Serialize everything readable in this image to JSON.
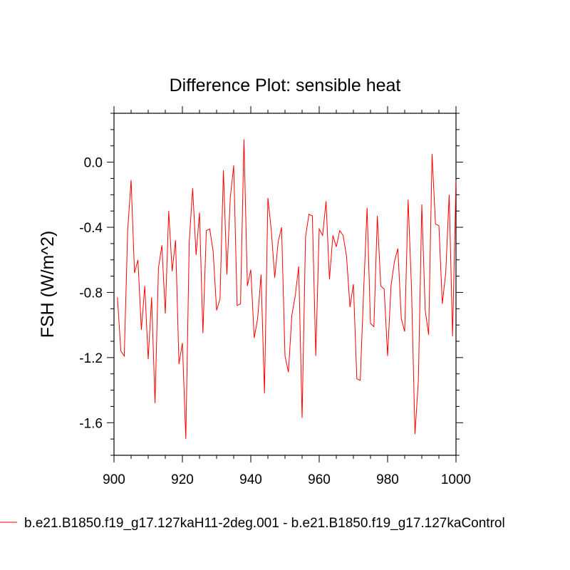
{
  "chart_data": {
    "type": "line",
    "title": "Difference Plot: sensible heat",
    "ylabel": "FSH  (W/m^2)",
    "xlabel": "",
    "xlim": [
      900,
      1000
    ],
    "ylim": [
      -1.8,
      0.3
    ],
    "x_ticks": [
      900,
      920,
      940,
      960,
      980,
      1000
    ],
    "x_tick_labels": [
      "900",
      "920",
      "940",
      "960",
      "980",
      "1000"
    ],
    "y_ticks": [
      0.0,
      -0.4,
      -0.8,
      -1.2,
      -1.6
    ],
    "y_tick_labels": [
      "0.0",
      "-0.4",
      "-0.8",
      "-1.2",
      "-1.6"
    ],
    "legend": {
      "position": "bottom",
      "label": "b.e21.B1850.f19_g17.127kaH11-2deg.001 - b.e21.B1850.f19_g17.127kaControl"
    },
    "series": [
      {
        "name": "b.e21.B1850.f19_g17.127kaH11-2deg.001 - b.e21.B1850.f19_g17.127kaControl",
        "color": "#ff0000",
        "x_start": 901,
        "x_step": 1,
        "values": [
          -0.83,
          -1.16,
          -1.19,
          -0.42,
          -0.11,
          -0.68,
          -0.6,
          -1.03,
          -0.76,
          -1.21,
          -0.83,
          -1.48,
          -0.65,
          -0.51,
          -0.93,
          -0.3,
          -0.67,
          -0.48,
          -1.24,
          -1.11,
          -1.7,
          -0.49,
          -0.16,
          -0.57,
          -0.31,
          -1.05,
          -0.42,
          -0.41,
          -0.55,
          -0.91,
          -0.84,
          -0.05,
          -0.69,
          -0.22,
          -0.02,
          -0.88,
          -0.87,
          0.14,
          -0.76,
          -0.66,
          -1.08,
          -0.96,
          -0.69,
          -1.42,
          -0.22,
          -0.42,
          -0.71,
          -0.49,
          -0.4,
          -1.19,
          -1.29,
          -0.94,
          -0.82,
          -0.64,
          -1.57,
          -0.46,
          -0.32,
          -0.33,
          -1.19,
          -0.41,
          -0.45,
          -0.24,
          -0.72,
          -0.45,
          -0.52,
          -0.42,
          -0.45,
          -0.58,
          -0.89,
          -0.75,
          -1.33,
          -1.34,
          -0.79,
          -0.28,
          -0.99,
          -1.01,
          -0.33,
          -0.76,
          -0.78,
          -1.19,
          -0.76,
          -0.61,
          -0.53,
          -0.96,
          -1.04,
          -0.23,
          -0.78,
          -1.67,
          -1.34,
          -0.26,
          -0.91,
          -1.06,
          0.05,
          -0.38,
          -0.39,
          -0.87,
          -0.68,
          -0.2,
          -1.07,
          -0.11
        ]
      }
    ]
  }
}
